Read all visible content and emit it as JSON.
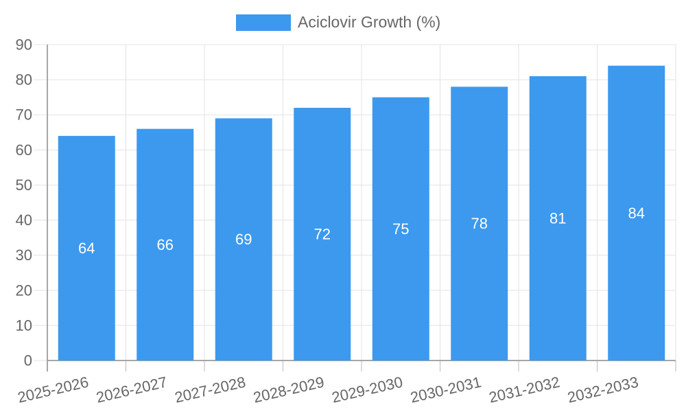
{
  "legend": {
    "label": "Aciclovir Growth (%)",
    "position": "top"
  },
  "colors": {
    "bar": "#3c99ee",
    "grid": "#e3e3e3",
    "axis": "#a6a6a6",
    "tick_mark": "#b9b9b9",
    "tick_text": "#666666",
    "value_label": "#ffffff",
    "background": "#ffffff"
  },
  "chart_data": {
    "type": "bar",
    "title": "",
    "legend_label": "Aciclovir Growth (%)",
    "legend_position": "top",
    "categories": [
      "2025-2026",
      "2026-2027",
      "2027-2028",
      "2028-2029",
      "2029-2030",
      "2030-2031",
      "2031-2032",
      "2032-2033"
    ],
    "series": [
      {
        "name": "Aciclovir Growth (%)",
        "values": [
          64,
          66,
          69,
          72,
          75,
          78,
          81,
          84
        ]
      }
    ],
    "ylim": [
      0,
      90
    ],
    "yticks": [
      0,
      10,
      20,
      30,
      40,
      50,
      60,
      70,
      80,
      90
    ],
    "grid": true,
    "data_label_position": "inside-center",
    "x_label_rotation_deg": -13
  }
}
